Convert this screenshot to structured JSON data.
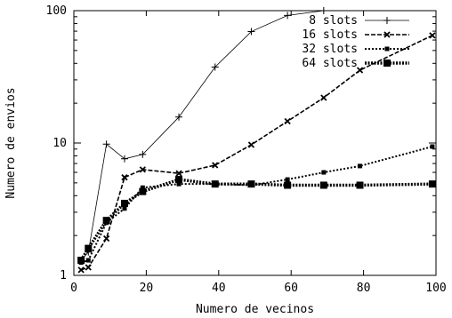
{
  "chart_data": {
    "type": "line",
    "xlabel": "Numero de vecinos",
    "ylabel": "Numero de envios",
    "xlim": [
      0,
      100
    ],
    "ylim": [
      1,
      100
    ],
    "yscale": "log",
    "x_ticks": [
      "0",
      "20",
      "40",
      "60",
      "80",
      "100"
    ],
    "y_ticks": [
      "1",
      "10",
      "100"
    ],
    "grid": false,
    "legend_position": "top-right",
    "series": [
      {
        "name": "8 slots",
        "marker": "plus",
        "line": "solid-thin",
        "color": "#000000",
        "x": [
          2,
          4,
          9,
          14,
          19,
          29,
          39,
          49,
          59,
          69
        ],
        "y": [
          1.3,
          1.5,
          9.8,
          7.6,
          8.2,
          15.7,
          37.5,
          69.5,
          92,
          100
        ]
      },
      {
        "name": "16 slots",
        "marker": "x",
        "line": "dashed",
        "color": "#000000",
        "x": [
          2,
          4,
          9,
          14,
          19,
          29,
          39,
          49,
          59,
          69,
          79,
          99
        ],
        "y": [
          1.1,
          1.15,
          1.9,
          5.5,
          6.3,
          5.9,
          6.8,
          9.7,
          14.6,
          22,
          35.5,
          65
        ]
      },
      {
        "name": "32 slots",
        "marker": "square-small",
        "line": "dotted",
        "color": "#000000",
        "x": [
          2,
          4,
          9,
          14,
          19,
          29,
          39,
          49,
          59,
          69,
          79,
          99
        ],
        "y": [
          1.25,
          1.3,
          2.5,
          3.2,
          4.6,
          4.9,
          4.9,
          4.8,
          5.3,
          6.0,
          6.7,
          9.4
        ]
      },
      {
        "name": "64 slots",
        "marker": "square-large",
        "line": "thick-dotted",
        "color": "#000000",
        "x": [
          2,
          4,
          9,
          14,
          19,
          29,
          39,
          49,
          59,
          69,
          79,
          99
        ],
        "y": [
          1.3,
          1.6,
          2.6,
          3.5,
          4.3,
          5.3,
          4.9,
          4.9,
          4.8,
          4.8,
          4.8,
          4.9
        ]
      }
    ]
  }
}
